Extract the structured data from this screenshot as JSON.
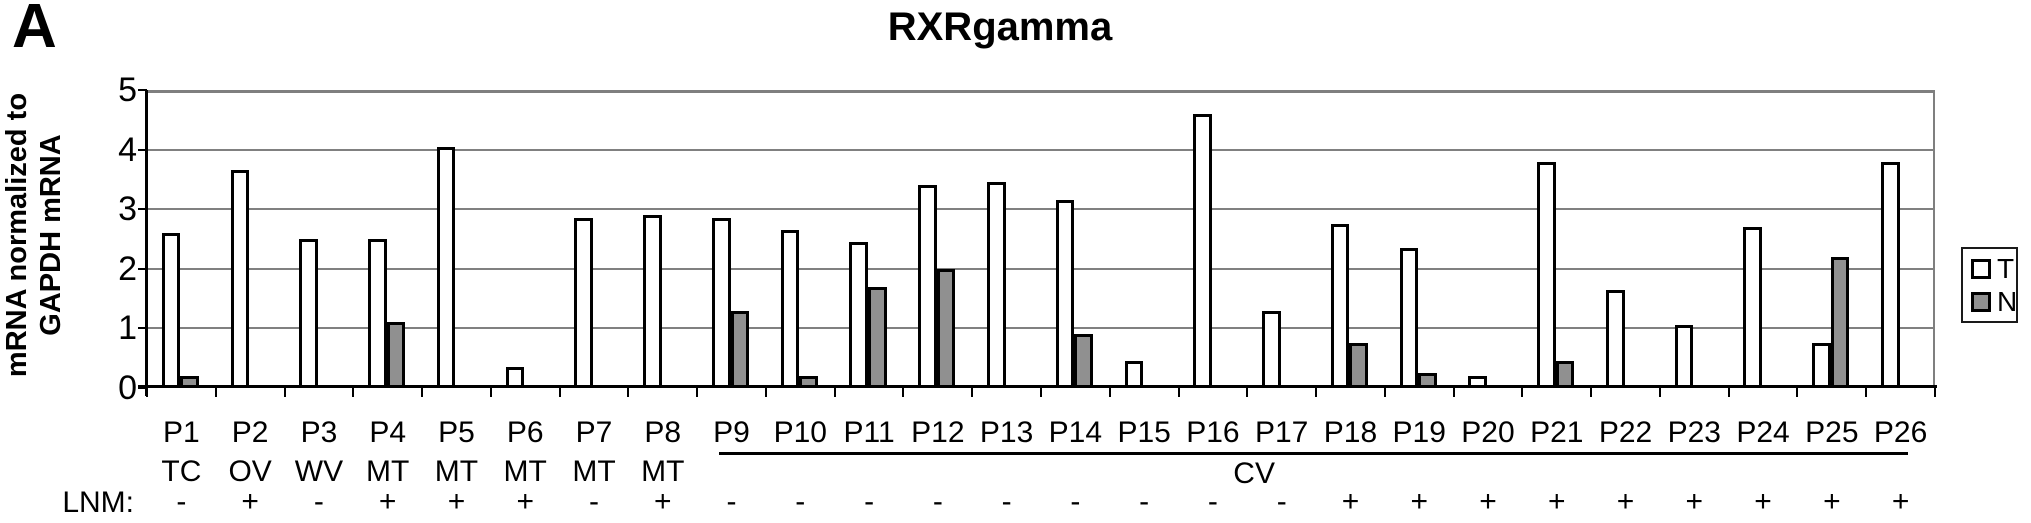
{
  "figure": {
    "panel_label": "A",
    "lnm_prefix": "LNM:"
  },
  "chart_data": {
    "type": "bar",
    "title": "RXRgamma",
    "ylabel_lines": [
      "mRNA normalized to",
      "GAPDH mRNA"
    ],
    "xlabel": "",
    "ylim": [
      0,
      5
    ],
    "yticks": [
      0,
      1,
      2,
      3,
      4,
      5
    ],
    "grid": true,
    "categories": [
      "P1",
      "P2",
      "P3",
      "P4",
      "P5",
      "P6",
      "P7",
      "P8",
      "P9",
      "P10",
      "P11",
      "P12",
      "P13",
      "P14",
      "P15",
      "P16",
      "P17",
      "P18",
      "P19",
      "P20",
      "P21",
      "P22",
      "P23",
      "P24",
      "P25",
      "P26"
    ],
    "tissue_labels": [
      "TC",
      "OV",
      "WV",
      "MT",
      "MT",
      "MT",
      "MT",
      "MT"
    ],
    "tissue_group": {
      "label": "CV",
      "start_index": 8,
      "end_index": 25
    },
    "lnm": [
      "-",
      "+",
      "-",
      "+",
      "+",
      "+",
      "-",
      "+",
      "-",
      "-",
      "-",
      "-",
      "-",
      "-",
      "-",
      "-",
      "-",
      "+",
      "+",
      "+",
      "+",
      "+",
      "+",
      "+",
      "+",
      "+"
    ],
    "series": [
      {
        "name": "T",
        "fill": "#ffffff",
        "values": [
          2.6,
          3.65,
          2.5,
          2.5,
          4.05,
          0.35,
          2.85,
          2.9,
          2.85,
          2.65,
          2.45,
          3.4,
          3.45,
          3.15,
          0.45,
          4.6,
          1.3,
          2.75,
          2.35,
          0.2,
          3.8,
          1.65,
          1.05,
          2.7,
          0.75,
          3.8
        ]
      },
      {
        "name": "N",
        "fill": "#909090",
        "values": [
          0.2,
          0,
          0,
          1.1,
          0,
          0,
          0,
          0,
          1.3,
          0.2,
          1.7,
          2.0,
          0,
          0.9,
          0,
          0,
          0,
          0.75,
          0.25,
          0,
          0.45,
          0,
          0,
          0,
          2.2,
          0
        ]
      }
    ],
    "legend": {
      "position": "right",
      "entries": [
        "T",
        "N"
      ]
    },
    "colors": {
      "bar_border": "#000000",
      "gridline": "#808080",
      "axis": "#000000",
      "background": "#ffffff"
    }
  }
}
